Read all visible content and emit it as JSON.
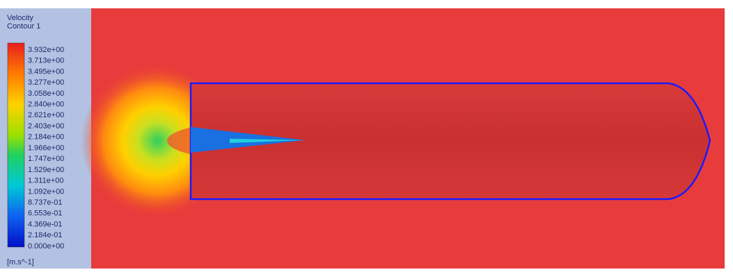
{
  "legend": {
    "title": [
      "Velocity",
      "Contour 1"
    ],
    "labels": [
      "3.932e+00",
      "3.713e+00",
      "3.495e+00",
      "3.277e+00",
      "3.058e+00",
      "2.840e+00",
      "2.621e+00",
      "2.403e+00",
      "2.184e+00",
      "1.966e+00",
      "1.747e+00",
      "1.529e+00",
      "1.311e+00",
      "1.092e+00",
      "8.737e-01",
      "6.553e-01",
      "4.369e-01",
      "2.184e-01",
      "0.000e+00"
    ],
    "unit": "[m.s^-1]"
  }
}
